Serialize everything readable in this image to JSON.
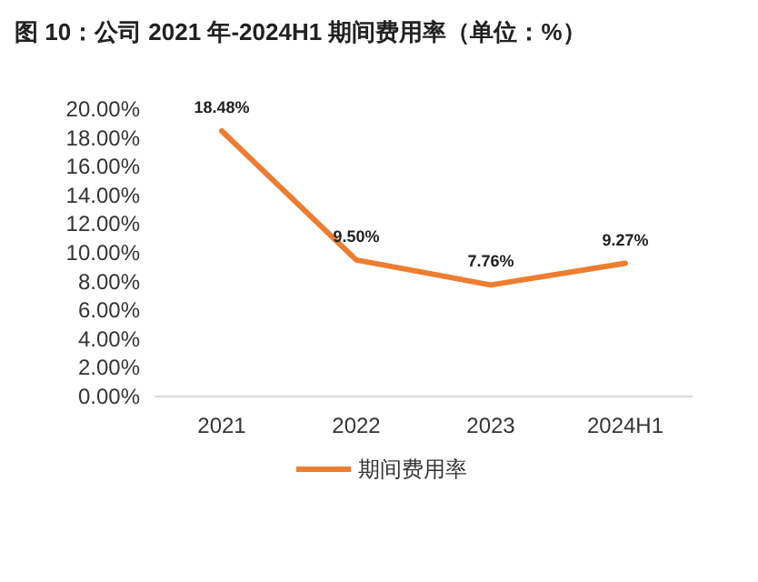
{
  "chart_data": {
    "type": "line",
    "title": "图 10：公司 2021 年-2024H1 期间费用率（单位：%）",
    "categories": [
      "2021",
      "2022",
      "2023",
      "2024H1"
    ],
    "series": [
      {
        "name": "期间费用率",
        "color": "#ed7d31",
        "values": [
          18.48,
          9.5,
          7.76,
          9.27
        ]
      }
    ],
    "value_labels": [
      "18.48%",
      "9.50%",
      "7.76%",
      "9.27%"
    ],
    "ylim": [
      0,
      20
    ],
    "yticks": [
      {
        "value": 0,
        "label": "0.00%"
      },
      {
        "value": 2,
        "label": "2.00%"
      },
      {
        "value": 4,
        "label": "4.00%"
      },
      {
        "value": 6,
        "label": "6.00%"
      },
      {
        "value": 8,
        "label": "8.00%"
      },
      {
        "value": 10,
        "label": "10.00%"
      },
      {
        "value": 12,
        "label": "12.00%"
      },
      {
        "value": 14,
        "label": "14.00%"
      },
      {
        "value": 16,
        "label": "16.00%"
      },
      {
        "value": 18,
        "label": "18.00%"
      },
      {
        "value": 20,
        "label": "20.00%"
      }
    ],
    "legend": "bottom",
    "marker": "none",
    "line_style": "solid",
    "grid": false
  }
}
